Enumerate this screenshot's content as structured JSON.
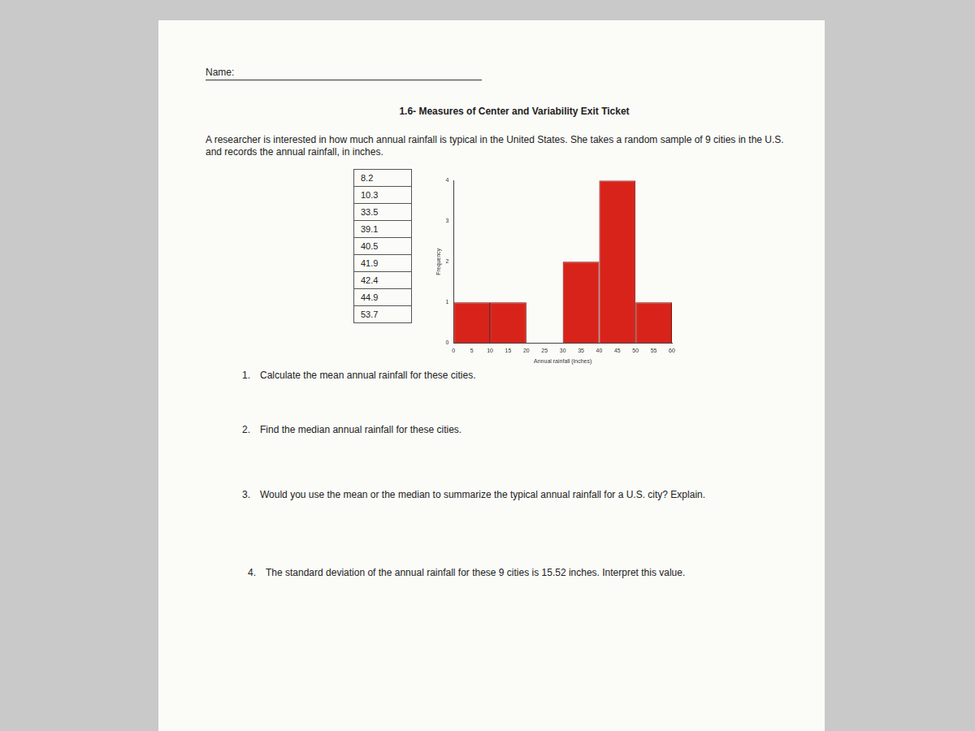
{
  "header": {
    "name_label": "Name:",
    "title": "1.6- Measures of Center and Variability Exit Ticket"
  },
  "intro": "A researcher is interested in how much annual rainfall is typical in the United States. She takes a random sample of 9 cities in the U.S. and records the annual rainfall, in inches.",
  "table": {
    "rows": [
      8.2,
      10.3,
      33.5,
      39.1,
      40.5,
      41.9,
      42.4,
      44.9,
      53.7
    ]
  },
  "chart_data": {
    "type": "histogram",
    "bins": [
      0,
      10,
      20,
      30,
      40,
      50,
      60
    ],
    "counts": [
      1,
      1,
      0,
      2,
      4,
      1
    ],
    "color": "#d8231b",
    "x_label": "Annual rainfall (inches)",
    "y_label": "Frequency",
    "xlim": [
      0,
      60
    ],
    "xticks": [
      0,
      5,
      10,
      15,
      20,
      25,
      30,
      35,
      40,
      45,
      50,
      55,
      60
    ],
    "ylim": [
      0,
      4
    ],
    "yticks": [
      0,
      1,
      2,
      3,
      4
    ],
    "grid": false
  },
  "questions": [
    {
      "label": "1.",
      "text": "Calculate the mean annual rainfall for these cities."
    },
    {
      "label": "2.",
      "text": "Find the median annual rainfall for these cities."
    },
    {
      "label": "3.",
      "text": "Would you use the mean or the median to summarize the typical annual rainfall for a U.S. city? Explain."
    },
    {
      "label": "4.",
      "text": "The standard deviation of the annual rainfall for these 9 cities is 15.52 inches. Interpret this value."
    }
  ]
}
